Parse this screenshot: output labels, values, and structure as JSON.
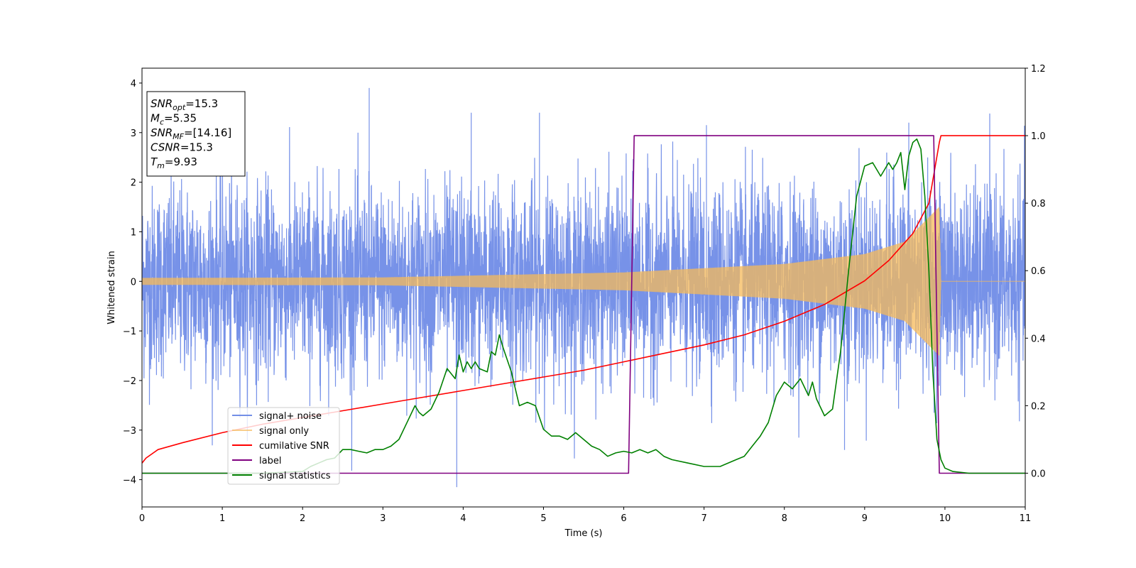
{
  "chart_data": {
    "type": "line",
    "xlabel": "Time (s)",
    "ylabel": "Whitened strain",
    "xlim": [
      0,
      11
    ],
    "ylim": [
      -4.55,
      4.3
    ],
    "y2lim": [
      -0.1,
      1.2
    ],
    "xticks": [
      "0",
      "1",
      "2",
      "3",
      "4",
      "5",
      "6",
      "7",
      "8",
      "9",
      "10",
      "11"
    ],
    "yticks": [
      "4",
      "3",
      "2",
      "1",
      "0",
      "−1",
      "−2",
      "−3",
      "−4"
    ],
    "y2ticks": [
      "1.2",
      "1.0",
      "0.8",
      "0.6",
      "0.4",
      "0.2",
      "0.0"
    ],
    "grid": false,
    "legend_position": "lower-left",
    "series": [
      {
        "name": "signal+ noise",
        "axis": "left",
        "color": "#6b89e6",
        "kind": "noise",
        "noise_std": 0.95,
        "spikes": [
          [
            2.83,
            3.9
          ],
          [
            3.92,
            -4.15
          ],
          [
            4.1,
            3.4
          ],
          [
            4.95,
            3.4
          ],
          [
            7.03,
            3.15
          ],
          [
            8.75,
            -3.4
          ],
          [
            9.55,
            3.2
          ]
        ]
      },
      {
        "name": "signal only",
        "axis": "left",
        "color": "#f5b95a",
        "kind": "chirp",
        "amplitude": [
          [
            0,
            0.07
          ],
          [
            3,
            0.08
          ],
          [
            6,
            0.18
          ],
          [
            8,
            0.35
          ],
          [
            9,
            0.55
          ],
          [
            9.5,
            0.8
          ],
          [
            9.93,
            1.5
          ],
          [
            9.95,
            0.0
          ],
          [
            11,
            0.0
          ]
        ]
      },
      {
        "name": "cumilative SNR",
        "axis": "right",
        "color": "#ff0000",
        "x": [
          0,
          0.05,
          0.2,
          0.5,
          1,
          1.5,
          2,
          2.5,
          3,
          3.5,
          4,
          4.5,
          5,
          5.5,
          6,
          6.5,
          7,
          7.5,
          8,
          8.5,
          9,
          9.3,
          9.6,
          9.8,
          9.93,
          9.95,
          11
        ],
        "values": [
          0.03,
          0.045,
          0.07,
          0.09,
          0.12,
          0.145,
          0.165,
          0.185,
          0.205,
          0.225,
          0.245,
          0.265,
          0.285,
          0.305,
          0.33,
          0.355,
          0.38,
          0.41,
          0.45,
          0.5,
          0.57,
          0.63,
          0.71,
          0.8,
          0.98,
          1.0,
          1.0
        ]
      },
      {
        "name": "label",
        "axis": "right",
        "color": "#800080",
        "x": [
          0,
          6.06,
          6.13,
          9.86,
          9.93,
          11
        ],
        "values": [
          0.0,
          0.0,
          1.0,
          1.0,
          0.0,
          0.0
        ]
      },
      {
        "name": "signal statistics",
        "axis": "right",
        "color": "#008000",
        "x": [
          0,
          0.5,
          1,
          1.5,
          2,
          2.1,
          2.2,
          2.3,
          2.4,
          2.5,
          2.6,
          2.7,
          2.8,
          2.9,
          3.0,
          3.1,
          3.2,
          3.3,
          3.4,
          3.45,
          3.5,
          3.6,
          3.7,
          3.8,
          3.9,
          3.95,
          4.0,
          4.05,
          4.1,
          4.15,
          4.2,
          4.3,
          4.35,
          4.4,
          4.45,
          4.5,
          4.6,
          4.7,
          4.8,
          4.9,
          5.0,
          5.1,
          5.2,
          5.3,
          5.4,
          5.5,
          5.6,
          5.7,
          5.8,
          5.9,
          6.0,
          6.1,
          6.2,
          6.3,
          6.4,
          6.5,
          6.6,
          6.8,
          7.0,
          7.2,
          7.4,
          7.5,
          7.6,
          7.7,
          7.8,
          7.9,
          8.0,
          8.1,
          8.2,
          8.3,
          8.35,
          8.4,
          8.5,
          8.6,
          8.7,
          8.8,
          8.9,
          9.0,
          9.1,
          9.2,
          9.3,
          9.35,
          9.4,
          9.45,
          9.5,
          9.55,
          9.6,
          9.65,
          9.7,
          9.75,
          9.8,
          9.85,
          9.9,
          9.95,
          10.0,
          10.1,
          10.3,
          11
        ],
        "values": [
          0.0,
          0.0,
          0.0,
          0.0,
          0.005,
          0.02,
          0.03,
          0.04,
          0.045,
          0.07,
          0.07,
          0.065,
          0.06,
          0.07,
          0.07,
          0.08,
          0.1,
          0.15,
          0.2,
          0.18,
          0.17,
          0.19,
          0.24,
          0.31,
          0.28,
          0.35,
          0.3,
          0.33,
          0.31,
          0.33,
          0.31,
          0.3,
          0.36,
          0.35,
          0.41,
          0.37,
          0.3,
          0.2,
          0.21,
          0.2,
          0.13,
          0.11,
          0.11,
          0.1,
          0.12,
          0.1,
          0.08,
          0.07,
          0.05,
          0.06,
          0.065,
          0.06,
          0.07,
          0.06,
          0.07,
          0.05,
          0.04,
          0.03,
          0.02,
          0.02,
          0.04,
          0.05,
          0.08,
          0.11,
          0.15,
          0.23,
          0.27,
          0.25,
          0.28,
          0.23,
          0.27,
          0.22,
          0.17,
          0.19,
          0.36,
          0.6,
          0.82,
          0.91,
          0.92,
          0.88,
          0.92,
          0.9,
          0.92,
          0.95,
          0.84,
          0.94,
          0.98,
          0.99,
          0.96,
          0.82,
          0.6,
          0.3,
          0.1,
          0.04,
          0.015,
          0.005,
          0.0,
          0.0
        ]
      }
    ],
    "annotation": [
      {
        "base": "SNR",
        "sub": "opt",
        "rest": "=15.3"
      },
      {
        "base": "M",
        "sub": "c",
        "rest": "=5.35"
      },
      {
        "base": "SNR",
        "sub": "MF",
        "rest": "=[14.16]"
      },
      {
        "base": "CSNR",
        "sub": "",
        "rest": "=15.3"
      },
      {
        "base": "T",
        "sub": "m",
        "rest": "=9.93"
      }
    ]
  }
}
